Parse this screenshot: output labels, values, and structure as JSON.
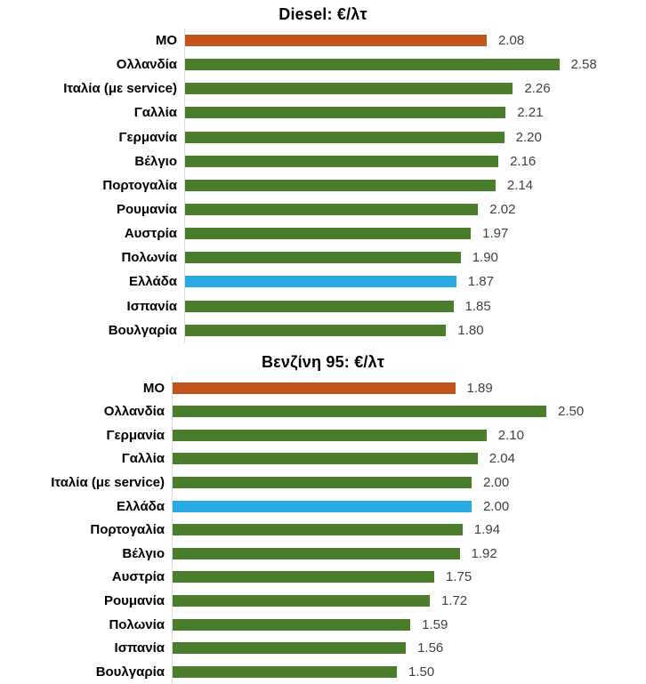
{
  "colors": {
    "country_bar": "#4a7d2c",
    "average_bar": "#bf551c",
    "greece_bar": "#2aa8e0",
    "axis_line": "#d9d9d9",
    "value_text": "#404040",
    "label_text": "#000000",
    "background": "#ffffff"
  },
  "chart_data": [
    {
      "type": "bar",
      "orientation": "horizontal",
      "title": "Diesel: €/λτ",
      "unit": "€/λτ",
      "grid": false,
      "legend_position": "none",
      "value_labels": true,
      "xlim": [
        0,
        2.6
      ],
      "categories": [
        "ΜΟ",
        "Ολλανδία",
        "Ιταλία (με service)",
        "Γαλλία",
        "Γερμανία",
        "Βέλγιο",
        "Πορτογαλία",
        "Ρουμανία",
        "Αυστρία",
        "Πολωνία",
        "Ελλάδα",
        "Ισπανία",
        "Βουλγαρία"
      ],
      "values": [
        2.08,
        2.58,
        2.26,
        2.21,
        2.2,
        2.16,
        2.14,
        2.02,
        1.97,
        1.9,
        1.87,
        1.85,
        1.8
      ],
      "bar_roles": [
        "average",
        "country",
        "country",
        "country",
        "country",
        "country",
        "country",
        "country",
        "country",
        "country",
        "greece",
        "country",
        "country"
      ]
    },
    {
      "type": "bar",
      "orientation": "horizontal",
      "title": "Βενζίνη 95: €/λτ",
      "unit": "€/λτ",
      "grid": false,
      "legend_position": "none",
      "value_labels": true,
      "xlim": [
        0,
        2.5
      ],
      "categories": [
        "ΜΟ",
        "Ολλανδία",
        "Γερμανία",
        "Γαλλία",
        "Ιταλία (με service)",
        "Ελλάδα",
        "Πορτογαλία",
        "Βέλγιο",
        "Αυστρία",
        "Ρουμανία",
        "Πολωνία",
        "Ισπανία",
        "Βουλγαρία"
      ],
      "values": [
        1.89,
        2.5,
        2.1,
        2.04,
        2.0,
        2.0,
        1.94,
        1.92,
        1.75,
        1.72,
        1.59,
        1.56,
        1.5
      ],
      "bar_roles": [
        "average",
        "country",
        "country",
        "country",
        "country",
        "greece",
        "country",
        "country",
        "country",
        "country",
        "country",
        "country",
        "country"
      ]
    }
  ]
}
